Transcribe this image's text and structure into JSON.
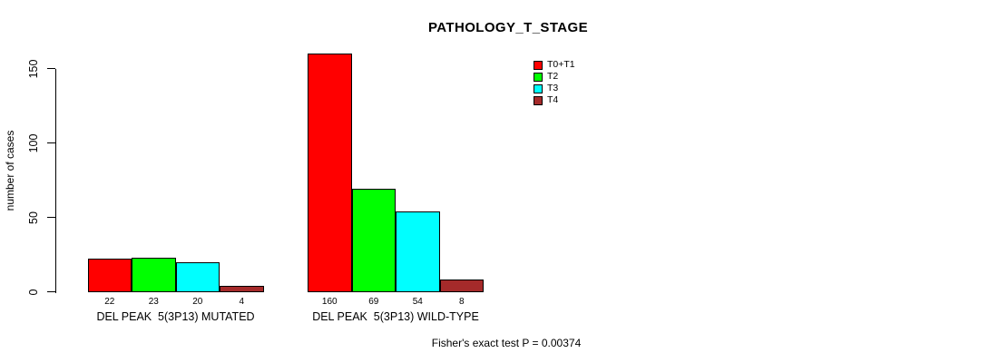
{
  "title": "PATHOLOGY_T_STAGE",
  "footnote": "Fisher's exact test P = 0.00374",
  "colors": {
    "background": "#FFFFFF",
    "axis": "#000000",
    "text": "#000000"
  },
  "legend": {
    "entries": [
      "T0+T1",
      "T2",
      "T3",
      "T4"
    ]
  },
  "chart_data": {
    "type": "bar",
    "title": "PATHOLOGY_T_STAGE",
    "xlabel": "",
    "ylabel": "number of cases",
    "categories": [
      "DEL PEAK  5(3P13) MUTATED",
      "DEL PEAK  5(3P13) WILD-TYPE"
    ],
    "series": [
      {
        "name": "T0+T1",
        "color": "#FF0000",
        "values": [
          22,
          160
        ]
      },
      {
        "name": "T2",
        "color": "#00FF00",
        "values": [
          23,
          69
        ]
      },
      {
        "name": "T3",
        "color": "#00FFFF",
        "values": [
          20,
          54
        ]
      },
      {
        "name": "T4",
        "color": "#A52A2A",
        "values": [
          4,
          8
        ]
      }
    ],
    "yticks": [
      0,
      50,
      100,
      150
    ],
    "ylim": [
      0,
      160
    ],
    "bar_value_labels": true,
    "grid": false,
    "legend_position": "top-right",
    "annotation": "Fisher's exact test P = 0.00374"
  }
}
